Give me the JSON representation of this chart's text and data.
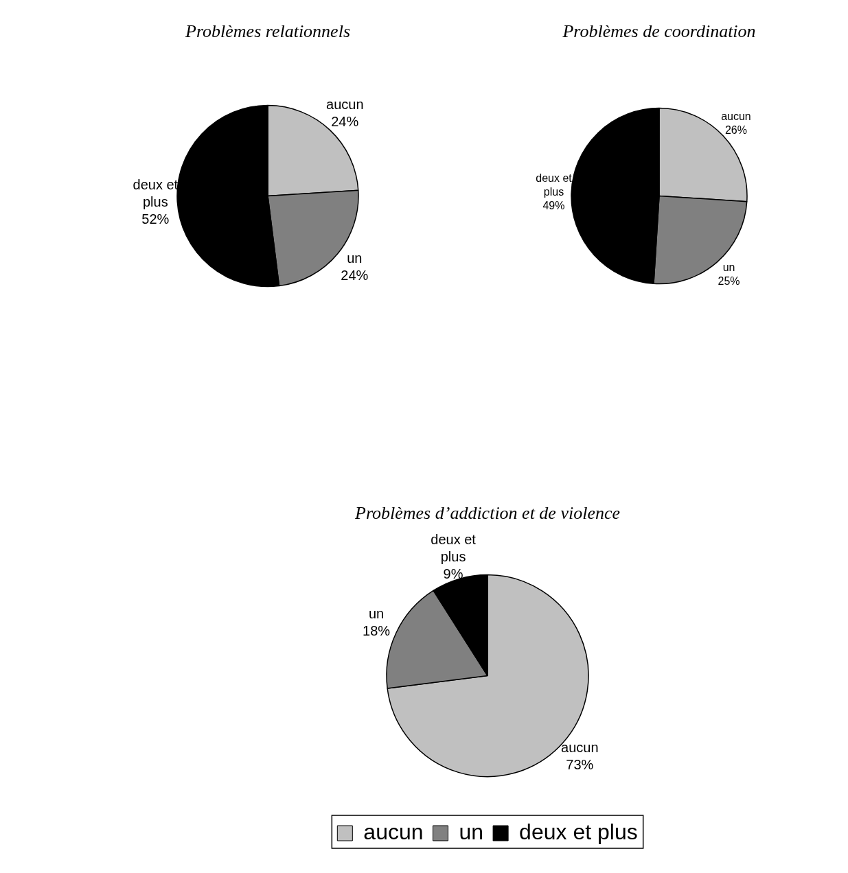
{
  "chart_data": [
    {
      "type": "pie",
      "title": "Problèmes relationnels",
      "categories": [
        "aucun",
        "un",
        "deux et plus"
      ],
      "values": [
        24,
        24,
        52
      ],
      "value_labels": [
        "24%",
        "24%",
        "52%"
      ],
      "colors": [
        "#c0c0c0",
        "#808080",
        "#000000"
      ]
    },
    {
      "type": "pie",
      "title": "Problèmes de coordination",
      "categories": [
        "aucun",
        "un",
        "deux et plus"
      ],
      "values": [
        26,
        25,
        49
      ],
      "value_labels": [
        "26%",
        "25%",
        "49%"
      ],
      "colors": [
        "#c0c0c0",
        "#808080",
        "#000000"
      ]
    },
    {
      "type": "pie",
      "title": "Problèmes d’addiction et de violence",
      "categories": [
        "aucun",
        "un",
        "deux et plus"
      ],
      "values": [
        73,
        18,
        9
      ],
      "value_labels": [
        "73%",
        "18%",
        "9%"
      ],
      "colors": [
        "#c0c0c0",
        "#808080",
        "#000000"
      ],
      "legend": "bottom"
    }
  ]
}
